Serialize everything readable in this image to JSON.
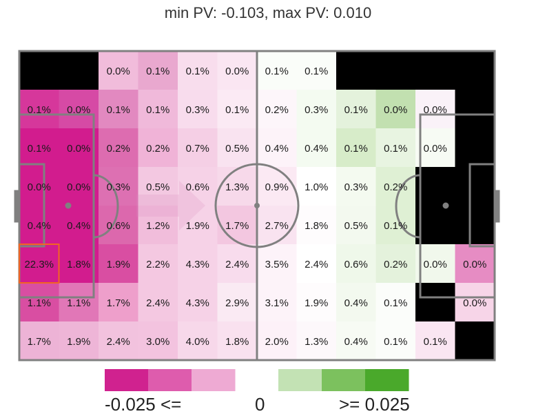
{
  "chart_data": {
    "type": "heatmap",
    "title": "min PV: -0.103, max PV: 0.010",
    "rows": 8,
    "cols": 12,
    "cells": [
      [
        "",
        "",
        "0.0%",
        "0.1%",
        "0.1%",
        "0.0%",
        "0.1%",
        "0.1%",
        "",
        "",
        "",
        ""
      ],
      [
        "0.1%",
        "0.0%",
        "0.1%",
        "0.1%",
        "0.3%",
        "0.1%",
        "0.2%",
        "0.3%",
        "0.1%",
        "0.0%",
        "0.0%",
        ""
      ],
      [
        "0.1%",
        "0.0%",
        "0.2%",
        "0.2%",
        "0.7%",
        "0.5%",
        "0.4%",
        "0.4%",
        "0.1%",
        "0.1%",
        "0.0%",
        ""
      ],
      [
        "0.0%",
        "0.0%",
        "0.3%",
        "0.5%",
        "0.6%",
        "1.3%",
        "0.9%",
        "1.0%",
        "0.3%",
        "0.2%",
        "",
        ""
      ],
      [
        "0.4%",
        "0.4%",
        "0.6%",
        "1.2%",
        "1.9%",
        "1.7%",
        "2.7%",
        "1.8%",
        "0.5%",
        "0.1%",
        "",
        ""
      ],
      [
        "22.3%",
        "1.8%",
        "1.9%",
        "2.2%",
        "4.3%",
        "2.4%",
        "3.5%",
        "2.4%",
        "0.6%",
        "0.2%",
        "0.0%",
        "0.0%"
      ],
      [
        "1.1%",
        "1.1%",
        "1.7%",
        "2.4%",
        "4.3%",
        "2.9%",
        "3.1%",
        "1.9%",
        "0.4%",
        "0.1%",
        "",
        "0.0%"
      ],
      [
        "1.7%",
        "1.9%",
        "2.4%",
        "3.0%",
        "4.0%",
        "1.8%",
        "2.0%",
        "1.3%",
        "0.4%",
        "0.1%",
        "0.1%",
        ""
      ]
    ],
    "colors": [
      [
        "#000000",
        "#000000",
        "#f1bcdb",
        "#e9a8cf",
        "#f8dded",
        "#fae6f2",
        "#fafdf9",
        "#fafdf9",
        "#000000",
        "#000000",
        "#000000",
        "#000000"
      ],
      [
        "#d6379b",
        "#d64aa5",
        "#e289c0",
        "#f0b9da",
        "#f8dced",
        "#fbeaf4",
        "#fdf6fa",
        "#f4fbf1",
        "#e4f2dc",
        "#c2e0b0",
        "#faf2f8",
        "#000000"
      ],
      [
        "#d21c8e",
        "#d21c8e",
        "#dd6cb0",
        "#f0b3d7",
        "#f5cfe5",
        "#f9e3f0",
        "#fdf3f9",
        "#f4fbf1",
        "#d7ecc9",
        "#e8f4e1",
        "#f7fbf4",
        "#000000"
      ],
      [
        "#d21c8e",
        "#d21c8e",
        "#dd70b2",
        "#f3c8e1",
        "#f6d2e7",
        "#f7d9ea",
        "#fbe9f3",
        "#ffffff",
        "#f4faf0",
        "#dff0d4",
        "#000000",
        "#000000"
      ],
      [
        "#d21c8e",
        "#d21c8e",
        "#dc68ad",
        "#f1bddb",
        "#f6d2e7",
        "#f3c7e0",
        "#f9e3f0",
        "#fefcfd",
        "#f3f9ef",
        "#dff0d4",
        "#000000",
        "#000000"
      ],
      [
        "#d21c8e",
        "#d21c8e",
        "#d94ea2",
        "#f4c8e1",
        "#f6d2e7",
        "#f8dced",
        "#fdf3f9",
        "#ffffff",
        "#eff8ea",
        "#e4f2dc",
        "#f1f8ec",
        "#e68cc3"
      ],
      [
        "#d94ea2",
        "#e177b7",
        "#ee9fcb",
        "#f4c8e1",
        "#f6d2e7",
        "#faeaf3",
        "#fdf3f9",
        "#fefcfd",
        "#f3f9ef",
        "#fbfdfa",
        "#000000",
        "#f7d5e8"
      ],
      [
        "#edb3d6",
        "#eeb5d7",
        "#f2c2de",
        "#f3c3df",
        "#f7d8ea",
        "#f9e1ef",
        "#fdf1f8",
        "#fdf8fb",
        "#f7fbf4",
        "#fbfdfa",
        "#fae6f2",
        "#000000"
      ]
    ],
    "xlabel": "",
    "ylabel": "",
    "grid": false,
    "legend": {
      "placement": "bottom",
      "min_label": "-0.025 <=",
      "mid_label": "0",
      "max_label": ">= 0.025",
      "negative_colors": [
        "#d0228f",
        "#de5cad",
        "#eeaad3"
      ],
      "positive_colors": [
        "#c3e2b4",
        "#7cc15e",
        "#4aa92b"
      ]
    }
  }
}
